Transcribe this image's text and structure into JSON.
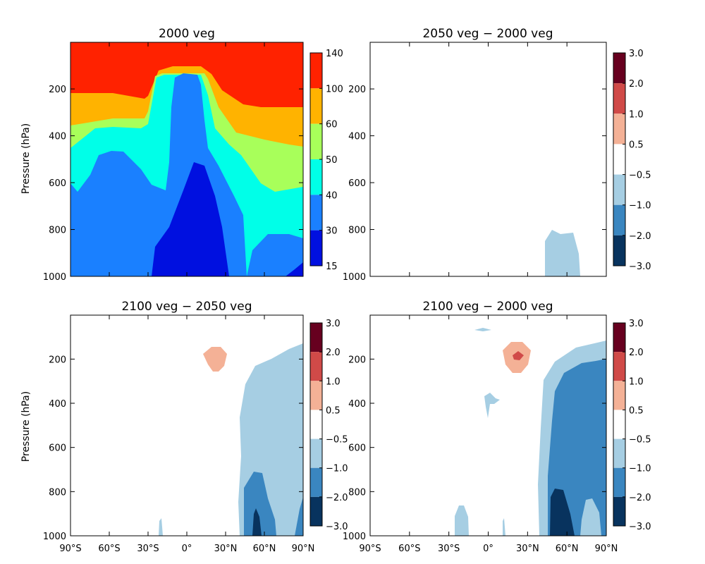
{
  "figure": {
    "panels": [
      {
        "id": "p1",
        "title": "2000 veg",
        "ylabel": "Pressure (hPa)"
      },
      {
        "id": "p2",
        "title": "2050 veg − 2000 veg",
        "ylabel": ""
      },
      {
        "id": "p3",
        "title": "2100 veg − 2050 veg",
        "ylabel": "Pressure (hPa)"
      },
      {
        "id": "p4",
        "title": "2100 veg − 2000 veg",
        "ylabel": ""
      }
    ],
    "y_ticks": [
      "200",
      "400",
      "600",
      "800",
      "1000"
    ],
    "x_ticks": [
      "90°S",
      "60°S",
      "30°S",
      "0°",
      "30°N",
      "60°N",
      "90°N"
    ],
    "colorbar_abs": {
      "labels": [
        "140",
        "100",
        "60",
        "50",
        "40",
        "30",
        "15"
      ],
      "colors": [
        "#ff2200",
        "#ffb300",
        "#a8ff5a",
        "#00ffe8",
        "#1a80ff",
        "#0010e0"
      ]
    },
    "colorbar_diff": {
      "labels": [
        "3.0",
        "2.0",
        "1.0",
        "0.5",
        "−0.5",
        "−1.0",
        "−2.0",
        "−3.0"
      ],
      "colors": [
        "#67001f",
        "#d04a48",
        "#f4b196",
        "#ffffff",
        "#a6cee3",
        "#3a86c0",
        "#08335e"
      ]
    }
  },
  "chart_data": [
    {
      "type": "heatmap",
      "title": "2000 veg",
      "xlabel": "",
      "ylabel": "Pressure (hPa)",
      "xlim": [
        -90,
        90
      ],
      "ylim": [
        1000,
        0
      ],
      "levels": [
        15,
        30,
        40,
        50,
        60,
        100,
        140
      ],
      "note_regions": [
        {
          "range": "100-140",
          "where": "upper levels, above ~200-280 hPa outside tropics"
        },
        {
          "range": "15-30",
          "where": "lower troposphere 5S-30N, below ~520 hPa"
        },
        {
          "range": "30-40",
          "where": "tropical column to ~140 hPa and lower extratropics"
        }
      ]
    },
    {
      "type": "heatmap",
      "title": "2050 veg − 2000 veg",
      "xlabel": "",
      "ylabel": "",
      "xlim": [
        -90,
        90
      ],
      "ylim": [
        1000,
        0
      ],
      "levels": [
        -3.0,
        -2.0,
        -1.0,
        -0.5,
        0.5,
        1.0,
        2.0,
        3.0
      ],
      "note_regions": [
        {
          "range": "-1.0 to -0.5",
          "where": "45N-70N, 800-1000 hPa"
        }
      ]
    },
    {
      "type": "heatmap",
      "title": "2100 veg − 2050 veg",
      "xlabel": "",
      "ylabel": "Pressure (hPa)",
      "xlim": [
        -90,
        90
      ],
      "ylim": [
        1000,
        0
      ],
      "levels": [
        -3.0,
        -2.0,
        -1.0,
        -0.5,
        0.5,
        1.0,
        2.0,
        3.0
      ],
      "note_regions": [
        {
          "range": "0.5-1.0",
          "where": "~25N, 170-250 hPa"
        },
        {
          "range": "-1.0 to -0.5",
          "where": "40N-90N, 150-1000 hPa"
        },
        {
          "range": "-2.0 to -1.0",
          "where": "45N-70N, 700-1000 hPa"
        },
        {
          "range": "-3.0 to -2.0",
          "where": "~55N, 880-1000 hPa"
        }
      ]
    },
    {
      "type": "heatmap",
      "title": "2100 veg − 2000 veg",
      "xlabel": "",
      "ylabel": "",
      "xlim": [
        -90,
        90
      ],
      "ylim": [
        1000,
        0
      ],
      "levels": [
        -3.0,
        -2.0,
        -1.0,
        -0.5,
        0.5,
        1.0,
        2.0,
        3.0
      ],
      "note_regions": [
        {
          "range": "0.5-2.0",
          "where": "~25N, 150-250 hPa"
        },
        {
          "range": "-1.0 to -0.5",
          "where": "40N-90N, 100-1000 hPa"
        },
        {
          "range": "-2.0 to -1.0",
          "where": "50N-90N, 250-1000 hPa"
        },
        {
          "range": "-3.0 to -2.0",
          "where": "50N-70N, 850-1000 hPa"
        }
      ]
    }
  ]
}
